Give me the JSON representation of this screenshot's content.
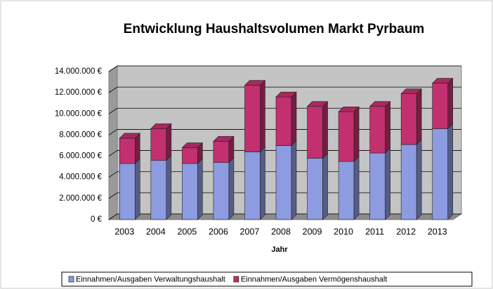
{
  "chart_data": {
    "type": "bar3d_stacked",
    "title": "Entwicklung Haushaltsvolumen Markt Pyrbaum",
    "x_label": "Jahr",
    "categories": [
      "2003",
      "2004",
      "2005",
      "2006",
      "2007",
      "2008",
      "2009",
      "2010",
      "2011",
      "2012",
      "2013"
    ],
    "series": [
      {
        "name": "Einnahmen/Ausgaben Verwaltungshaushalt",
        "color": "#8d9be0",
        "values": [
          5300000,
          5600000,
          5300000,
          5400000,
          6400000,
          7000000,
          5800000,
          5500000,
          6300000,
          7100000,
          8600000
        ]
      },
      {
        "name": "Einnahmen/Ausgaben Vermögenshaushalt",
        "color": "#c3306f",
        "values": [
          2400000,
          3000000,
          1500000,
          2000000,
          6300000,
          4600000,
          4900000,
          4700000,
          4400000,
          4800000,
          4300000
        ]
      }
    ],
    "ylim": [
      0,
      14000000
    ],
    "yticks": [
      {
        "value": 0,
        "label": "0 €"
      },
      {
        "value": 2000000,
        "label": "2.000.000 €"
      },
      {
        "value": 4000000,
        "label": "4.000.000 €"
      },
      {
        "value": 6000000,
        "label": "6.000.000 €"
      },
      {
        "value": 8000000,
        "label": "8.000.000 €"
      },
      {
        "value": 10000000,
        "label": "10.000.000 €"
      },
      {
        "value": 12000000,
        "label": "12.000.000 €"
      },
      {
        "value": 14000000,
        "label": "14.000.000 €"
      }
    ],
    "grid": true
  }
}
